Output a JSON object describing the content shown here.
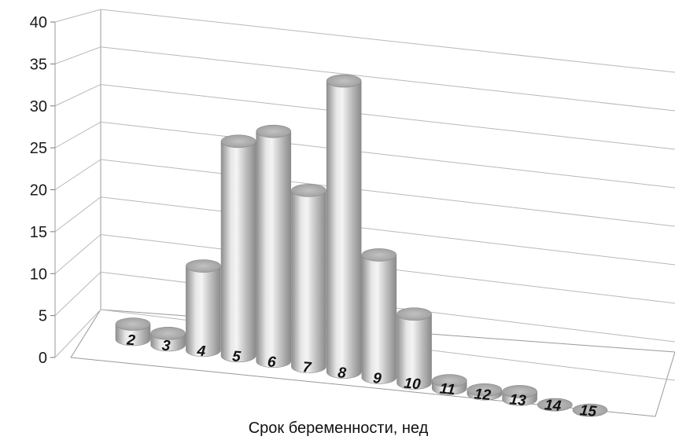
{
  "chart_data": {
    "type": "bar",
    "style": "3d-cylinder",
    "categories": [
      "2",
      "3",
      "4",
      "5",
      "6",
      "7",
      "8",
      "9",
      "10",
      "11",
      "12",
      "13",
      "14",
      "15"
    ],
    "values": [
      2,
      1.5,
      11,
      28,
      30,
      23,
      38,
      16,
      9,
      1,
      0.5,
      1,
      0,
      0
    ],
    "xlabel": "Срок беременности, нед",
    "ylabel": "",
    "ylim": [
      0,
      40
    ],
    "yticks": [
      0,
      5,
      10,
      15,
      20,
      25,
      30,
      35,
      40
    ],
    "grid": true,
    "legend": "none",
    "colors": {
      "bar": "#c4c4c4",
      "grid": "#b8b8b8",
      "text": "#111111"
    }
  }
}
